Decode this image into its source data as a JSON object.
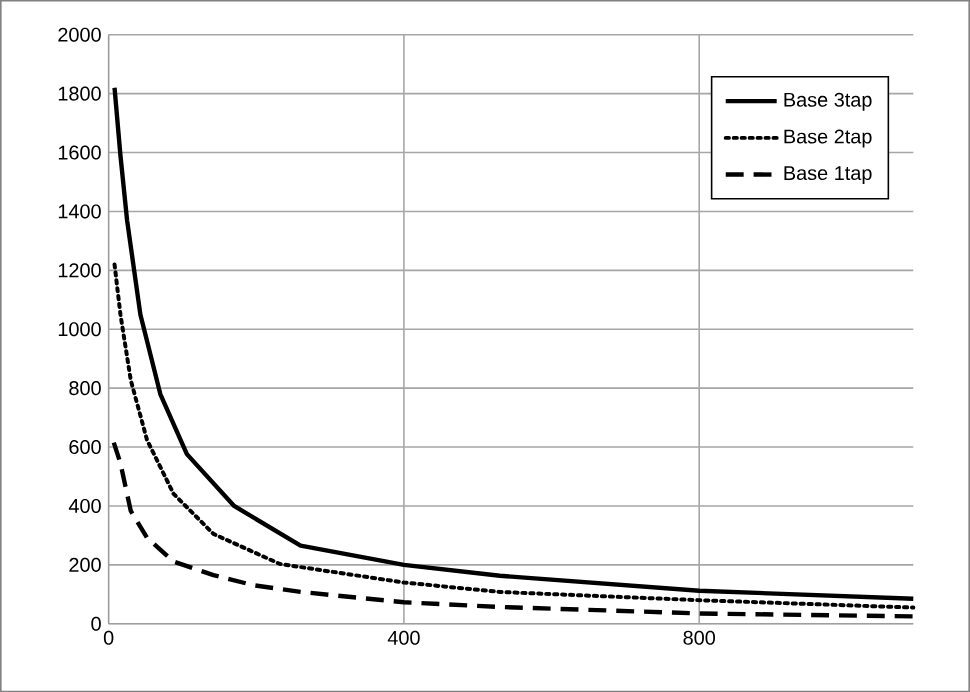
{
  "chart_data": {
    "type": "line",
    "xlim": [
      0,
      1090
    ],
    "ylim": [
      0,
      2000
    ],
    "xticks": [
      0,
      400,
      800
    ],
    "yticks": [
      0,
      200,
      400,
      600,
      800,
      1000,
      1200,
      1400,
      1600,
      1800,
      2000
    ],
    "grid": true,
    "legend": "top right",
    "marker": "none",
    "series": [
      {
        "name": "Base 3tap",
        "color": "#000000",
        "line_style": "solid",
        "x": [
          8,
          16,
          25,
          43,
          70,
          106,
          170,
          260,
          400,
          530,
          800,
          1090
        ],
        "values": [
          1820,
          1590,
          1370,
          1050,
          780,
          576,
          400,
          265,
          200,
          163,
          112,
          85
        ]
      },
      {
        "name": "Base 2tap",
        "color": "#000000",
        "line_style": "dotted",
        "x": [
          8,
          16,
          30,
          52,
          88,
          142,
          232,
          400,
          530,
          800,
          1090
        ],
        "values": [
          1220,
          1050,
          827,
          624,
          441,
          305,
          203,
          140,
          108,
          80,
          55
        ]
      },
      {
        "name": "Base 1tap",
        "color": "#000000",
        "line_style": "dashed",
        "x": [
          7,
          16,
          30,
          52,
          88,
          142,
          196,
          260,
          400,
          530,
          800,
          1090
        ],
        "values": [
          615,
          545,
          383,
          292,
          211,
          165,
          131,
          108,
          73,
          57,
          35,
          25
        ]
      }
    ]
  }
}
